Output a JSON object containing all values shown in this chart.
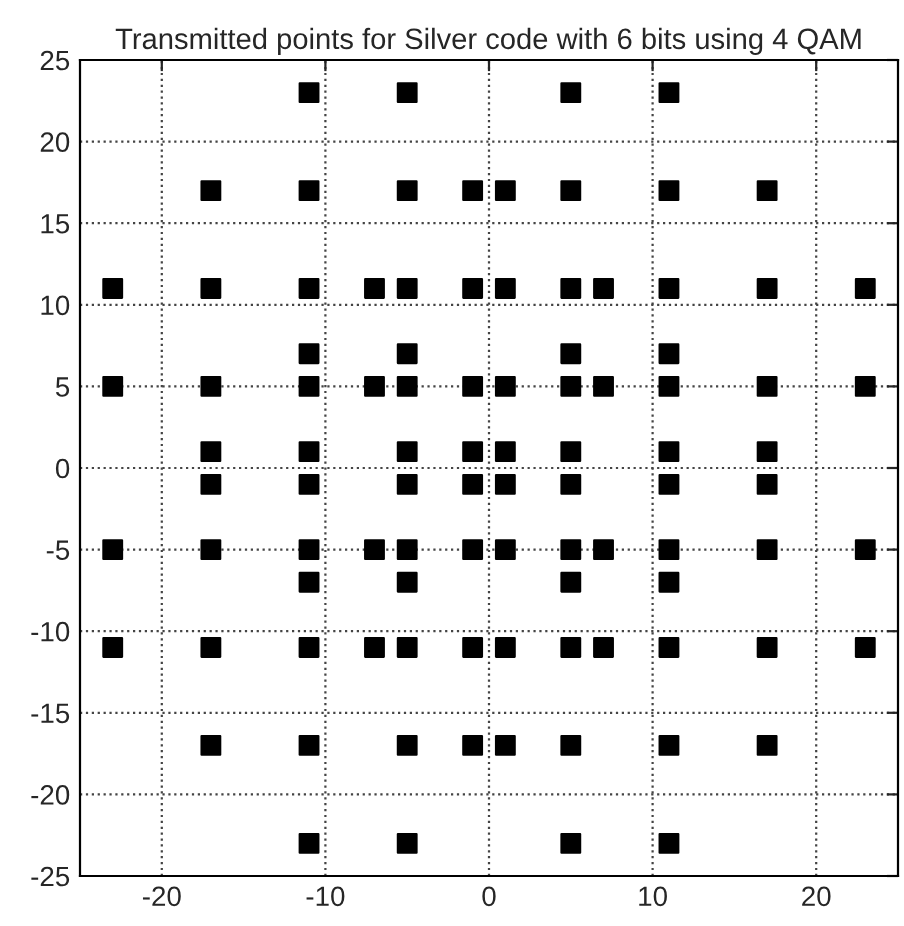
{
  "chart_data": {
    "type": "scatter",
    "title": "Transmitted points for Silver code with 6 bits using 4 QAM",
    "x": [
      -11,
      -5,
      5,
      11,
      -17,
      -11,
      -5,
      -1,
      1,
      5,
      11,
      17,
      -23,
      -17,
      -11,
      -7,
      -5,
      -1,
      1,
      5,
      7,
      11,
      17,
      23,
      -11,
      -5,
      5,
      11,
      -23,
      -17,
      -11,
      -7,
      -5,
      -1,
      1,
      5,
      7,
      11,
      17,
      23,
      -17,
      -11,
      -5,
      -1,
      1,
      5,
      11,
      17,
      -17,
      -11,
      -5,
      -1,
      1,
      5,
      11,
      17,
      -23,
      -17,
      -11,
      -7,
      -5,
      -1,
      1,
      5,
      7,
      11,
      17,
      23,
      -11,
      -5,
      5,
      11,
      -23,
      -17,
      -11,
      -7,
      -5,
      -1,
      1,
      5,
      7,
      11,
      17,
      23,
      -17,
      -11,
      -5,
      -1,
      1,
      5,
      11,
      17,
      -11,
      -5,
      5,
      11
    ],
    "values": [
      23,
      23,
      23,
      23,
      17,
      17,
      17,
      17,
      17,
      17,
      17,
      17,
      11,
      11,
      11,
      11,
      11,
      11,
      11,
      11,
      11,
      11,
      11,
      11,
      7,
      7,
      7,
      7,
      5,
      5,
      5,
      5,
      5,
      5,
      5,
      5,
      5,
      5,
      5,
      5,
      1,
      1,
      1,
      1,
      1,
      1,
      1,
      1,
      -1,
      -1,
      -1,
      -1,
      -1,
      -1,
      -1,
      -1,
      -5,
      -5,
      -5,
      -5,
      -5,
      -5,
      -5,
      -5,
      -5,
      -5,
      -5,
      -5,
      -7,
      -7,
      -7,
      -7,
      -11,
      -11,
      -11,
      -11,
      -11,
      -11,
      -11,
      -11,
      -11,
      -11,
      -11,
      -11,
      -17,
      -17,
      -17,
      -17,
      -17,
      -17,
      -17,
      -17,
      -23,
      -23,
      -23,
      -23
    ],
    "color": "#000000",
    "marker": "square",
    "xlim": [
      -25,
      25
    ],
    "xticks": [
      -20,
      -10,
      0,
      10,
      20
    ],
    "ylim": [
      -25,
      25
    ],
    "yticks": [
      -25,
      -20,
      -15,
      -10,
      -5,
      0,
      5,
      10,
      15,
      20,
      25
    ],
    "grid": true
  }
}
